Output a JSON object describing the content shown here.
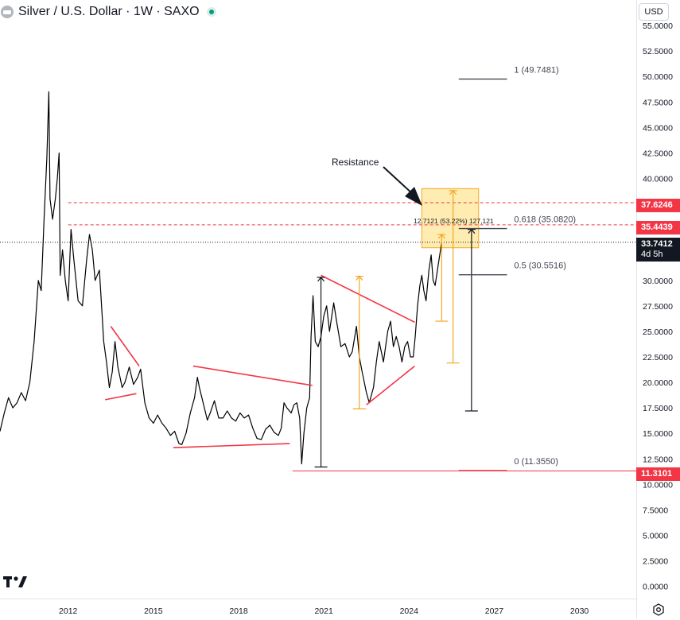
{
  "header": {
    "title": "Silver / U.S. Dollar · 1W · SAXO"
  },
  "currency_label": "USD",
  "price_badges": {
    "upper_resistance": "37.6246",
    "lower_resistance": "35.4439",
    "current_price": "33.7412",
    "countdown": "4d 5h",
    "support": "11.3101"
  },
  "colors": {
    "price_line": "#000000",
    "trendline": "#f23645",
    "measure_orange": "#f5a623",
    "resistance_zone": "#ffd54f",
    "fib_line": "#434651",
    "badge_red": "#f23645",
    "badge_black": "#131722"
  },
  "icons": {
    "logo": "tradingview-logo-icon",
    "settings": "settings-icon",
    "status": "market-open-icon"
  },
  "chart_data": {
    "type": "line",
    "title": "Silver / U.S. Dollar · 1W · SAXO",
    "xlabel": "",
    "ylabel": "",
    "x_ticks": [
      "2012",
      "2015",
      "2018",
      "2021",
      "2024",
      "2027",
      "2030"
    ],
    "y_ticks": [
      "55.0000",
      "52.5000",
      "50.0000",
      "47.5000",
      "45.0000",
      "42.5000",
      "40.0000",
      "37.5000",
      "35.0000",
      "32.5000",
      "30.0000",
      "27.5000",
      "25.0000",
      "22.5000",
      "20.0000",
      "17.5000",
      "15.0000",
      "12.5000",
      "10.0000",
      "7.5000",
      "5.0000",
      "2.5000",
      "0.0000"
    ],
    "ylim": [
      -1.2,
      57.5
    ],
    "xlim": [
      2009.6,
      2032.0
    ],
    "grid": false,
    "series": [
      {
        "values": [
          [
            2009.6,
            15.2
          ],
          [
            2009.75,
            17.0
          ],
          [
            2009.9,
            18.5
          ],
          [
            2010.05,
            17.5
          ],
          [
            2010.2,
            18.0
          ],
          [
            2010.35,
            19.0
          ],
          [
            2010.5,
            18.2
          ],
          [
            2010.65,
            20.0
          ],
          [
            2010.8,
            24.0
          ],
          [
            2010.95,
            30.0
          ],
          [
            2011.05,
            29.0
          ],
          [
            2011.15,
            36.0
          ],
          [
            2011.25,
            42.0
          ],
          [
            2011.32,
            48.5
          ],
          [
            2011.36,
            38.0
          ],
          [
            2011.45,
            36.0
          ],
          [
            2011.55,
            38.0
          ],
          [
            2011.62,
            40.0
          ],
          [
            2011.68,
            42.5
          ],
          [
            2011.72,
            30.5
          ],
          [
            2011.8,
            33.0
          ],
          [
            2011.9,
            30.0
          ],
          [
            2012.0,
            28.0
          ],
          [
            2012.1,
            35.0
          ],
          [
            2012.2,
            32.0
          ],
          [
            2012.35,
            28.0
          ],
          [
            2012.5,
            27.5
          ],
          [
            2012.65,
            32.0
          ],
          [
            2012.75,
            34.5
          ],
          [
            2012.85,
            33.0
          ],
          [
            2012.95,
            30.0
          ],
          [
            2013.1,
            31.0
          ],
          [
            2013.25,
            24.0
          ],
          [
            2013.35,
            22.0
          ],
          [
            2013.45,
            19.5
          ],
          [
            2013.55,
            21.0
          ],
          [
            2013.65,
            24.0
          ],
          [
            2013.75,
            21.5
          ],
          [
            2013.9,
            19.5
          ],
          [
            2014.0,
            20.0
          ],
          [
            2014.15,
            21.5
          ],
          [
            2014.3,
            19.8
          ],
          [
            2014.45,
            20.5
          ],
          [
            2014.55,
            21.3
          ],
          [
            2014.7,
            18.0
          ],
          [
            2014.85,
            16.5
          ],
          [
            2015.0,
            16.0
          ],
          [
            2015.15,
            16.8
          ],
          [
            2015.3,
            16.0
          ],
          [
            2015.45,
            15.5
          ],
          [
            2015.6,
            14.8
          ],
          [
            2015.75,
            15.2
          ],
          [
            2015.9,
            14.0
          ],
          [
            2016.0,
            13.9
          ],
          [
            2016.15,
            15.0
          ],
          [
            2016.3,
            17.0
          ],
          [
            2016.45,
            18.5
          ],
          [
            2016.55,
            20.5
          ],
          [
            2016.62,
            19.5
          ],
          [
            2016.75,
            18.0
          ],
          [
            2016.9,
            16.3
          ],
          [
            2017.0,
            17.0
          ],
          [
            2017.15,
            18.2
          ],
          [
            2017.3,
            16.5
          ],
          [
            2017.45,
            16.5
          ],
          [
            2017.6,
            17.2
          ],
          [
            2017.75,
            16.5
          ],
          [
            2017.9,
            16.2
          ],
          [
            2018.05,
            17.0
          ],
          [
            2018.2,
            16.5
          ],
          [
            2018.35,
            16.8
          ],
          [
            2018.5,
            15.5
          ],
          [
            2018.65,
            14.5
          ],
          [
            2018.8,
            14.4
          ],
          [
            2018.95,
            15.4
          ],
          [
            2019.1,
            15.8
          ],
          [
            2019.25,
            15.1
          ],
          [
            2019.4,
            14.8
          ],
          [
            2019.5,
            15.5
          ],
          [
            2019.6,
            18.0
          ],
          [
            2019.7,
            17.5
          ],
          [
            2019.85,
            17.0
          ],
          [
            2019.95,
            17.8
          ],
          [
            2020.05,
            18.0
          ],
          [
            2020.15,
            16.5
          ],
          [
            2020.22,
            12.0
          ],
          [
            2020.3,
            15.0
          ],
          [
            2020.4,
            17.5
          ],
          [
            2020.5,
            18.5
          ],
          [
            2020.55,
            24.5
          ],
          [
            2020.62,
            28.5
          ],
          [
            2020.7,
            24.0
          ],
          [
            2020.8,
            23.5
          ],
          [
            2020.9,
            24.5
          ],
          [
            2021.0,
            26.5
          ],
          [
            2021.1,
            27.5
          ],
          [
            2021.2,
            25.0
          ],
          [
            2021.35,
            27.8
          ],
          [
            2021.45,
            26.0
          ],
          [
            2021.6,
            23.5
          ],
          [
            2021.75,
            23.8
          ],
          [
            2021.9,
            22.5
          ],
          [
            2022.0,
            23.0
          ],
          [
            2022.15,
            25.5
          ],
          [
            2022.25,
            22.5
          ],
          [
            2022.35,
            21.0
          ],
          [
            2022.5,
            19.0
          ],
          [
            2022.6,
            18.0
          ],
          [
            2022.75,
            19.5
          ],
          [
            2022.85,
            22.0
          ],
          [
            2022.95,
            24.0
          ],
          [
            2023.1,
            22.0
          ],
          [
            2023.25,
            25.0
          ],
          [
            2023.35,
            26.0
          ],
          [
            2023.45,
            23.5
          ],
          [
            2023.55,
            24.5
          ],
          [
            2023.65,
            23.5
          ],
          [
            2023.75,
            22.0
          ],
          [
            2023.85,
            23.5
          ],
          [
            2023.95,
            24.0
          ],
          [
            2024.05,
            22.5
          ],
          [
            2024.15,
            22.5
          ],
          [
            2024.22,
            24.5
          ],
          [
            2024.3,
            27.5
          ],
          [
            2024.38,
            29.5
          ],
          [
            2024.45,
            30.5
          ],
          [
            2024.52,
            29.0
          ],
          [
            2024.6,
            28.0
          ],
          [
            2024.7,
            31.0
          ],
          [
            2024.78,
            32.5
          ],
          [
            2024.85,
            30.0
          ],
          [
            2024.92,
            29.5
          ],
          [
            2025.0,
            31.0
          ],
          [
            2025.08,
            32.5
          ],
          [
            2025.15,
            33.74
          ]
        ]
      }
    ],
    "annotations": {
      "text": "Resistance",
      "measure_label": "12.7121 (53.22%) 127,121",
      "fib_levels": [
        {
          "label": "1 (49.7481)",
          "value": 49.7481
        },
        {
          "label": "0.618 (35.0820)",
          "value": 35.082
        },
        {
          "label": "0.5 (30.5516)",
          "value": 30.5516
        },
        {
          "label": "0 (11.3550)",
          "value": 11.355
        }
      ],
      "horizontal_levels": [
        37.6246,
        35.4439,
        33.7412,
        11.3101
      ],
      "resistance_zone": {
        "x": [
          2024.45,
          2026.45
        ],
        "y": [
          33.2,
          39.0
        ]
      },
      "trendlines": [
        {
          "x": [
            2013.5,
            2014.5
          ],
          "y": [
            25.5,
            21.6
          ]
        },
        {
          "x": [
            2013.3,
            2014.4
          ],
          "y": [
            18.3,
            18.9
          ]
        },
        {
          "x": [
            2016.4,
            2020.6
          ],
          "y": [
            21.6,
            19.7
          ]
        },
        {
          "x": [
            2015.7,
            2019.8
          ],
          "y": [
            13.6,
            14.0
          ]
        },
        {
          "x": [
            2020.9,
            2024.2
          ],
          "y": [
            30.5,
            25.9
          ]
        },
        {
          "x": [
            2022.5,
            2024.2
          ],
          "y": [
            17.8,
            21.6
          ]
        }
      ],
      "measure_arrows": [
        {
          "color": "orange",
          "x": 2022.25,
          "y": [
            17.4,
            30.4
          ]
        },
        {
          "color": "orange",
          "x": 2025.55,
          "y": [
            21.9,
            38.8
          ]
        },
        {
          "color": "orange",
          "x": 2025.15,
          "y": [
            26.0,
            34.5
          ]
        },
        {
          "color": "black",
          "x": 2020.9,
          "y": [
            11.7,
            30.3
          ]
        },
        {
          "color": "black",
          "x": 2026.2,
          "y": [
            17.2,
            35.0
          ]
        }
      ]
    }
  }
}
